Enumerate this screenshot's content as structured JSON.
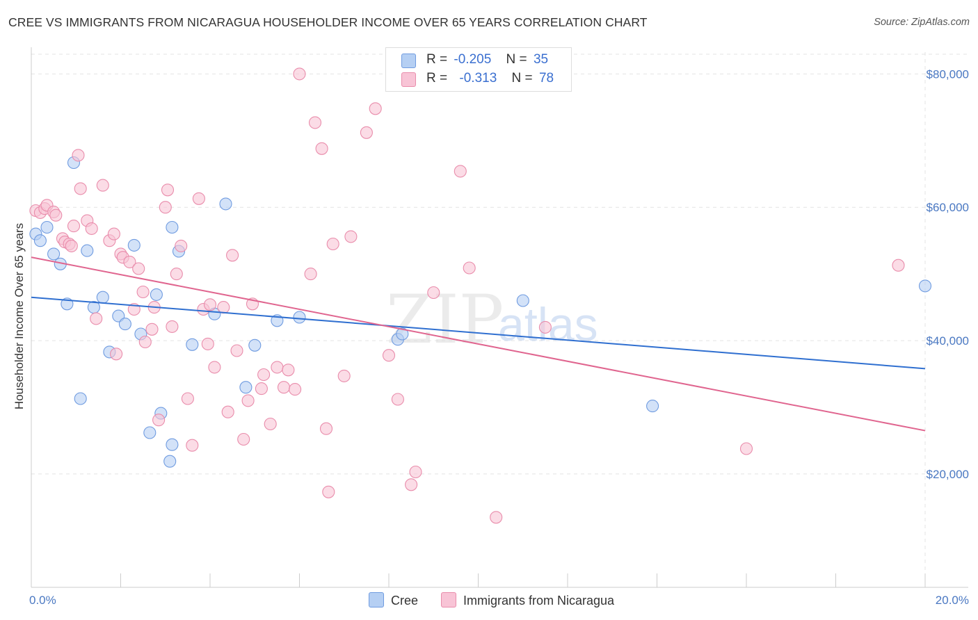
{
  "title": "CREE VS IMMIGRANTS FROM NICARAGUA HOUSEHOLDER INCOME OVER 65 YEARS CORRELATION CHART",
  "source": "Source: ZipAtlas.com",
  "watermark": {
    "zip": "ZIP",
    "atlas": "atlas"
  },
  "legend": {
    "r_label": "R =",
    "n_label": "N =",
    "rows": [
      {
        "r": "-0.205",
        "n": "35",
        "fill": "#b5cff3",
        "stroke": "#6f9be0"
      },
      {
        "r": "-0.313",
        "n": "78",
        "fill": "#f8c4d6",
        "stroke": "#e98cab"
      }
    ]
  },
  "chart_data": {
    "type": "scatter",
    "title": "CREE VS IMMIGRANTS FROM NICARAGUA HOUSEHOLDER INCOME OVER 65 YEARS CORRELATION CHART",
    "xlabel": "",
    "ylabel": "Householder Income Over 65 years",
    "xlim": [
      0,
      20
    ],
    "ylim": [
      3000,
      84000
    ],
    "x_tick_labels": [
      "0.0%",
      "20.0%"
    ],
    "y_ticks": [
      20000,
      40000,
      60000,
      80000
    ],
    "y_tick_labels": [
      "$20,000",
      "$40,000",
      "$60,000",
      "$80,000"
    ],
    "grid": true,
    "legend_position": "top-center",
    "series": [
      {
        "name": "Cree",
        "color": "#6f9be0",
        "fill": "#b5cff3",
        "line_color": "#2f6fd0",
        "trend": [
          [
            0,
            46500
          ],
          [
            20,
            35800
          ]
        ],
        "points": [
          [
            0.1,
            56000
          ],
          [
            0.2,
            55000
          ],
          [
            0.35,
            57000
          ],
          [
            0.5,
            53000
          ],
          [
            0.65,
            51500
          ],
          [
            0.8,
            45500
          ],
          [
            0.95,
            66700
          ],
          [
            1.1,
            31300
          ],
          [
            1.25,
            53500
          ],
          [
            1.4,
            45000
          ],
          [
            1.6,
            46500
          ],
          [
            1.75,
            38300
          ],
          [
            1.95,
            43700
          ],
          [
            2.1,
            42500
          ],
          [
            2.3,
            54300
          ],
          [
            2.45,
            41000
          ],
          [
            2.65,
            26200
          ],
          [
            2.8,
            46900
          ],
          [
            2.9,
            29100
          ],
          [
            3.1,
            21900
          ],
          [
            3.15,
            24400
          ],
          [
            3.15,
            57000
          ],
          [
            3.3,
            53400
          ],
          [
            3.6,
            39400
          ],
          [
            4.1,
            44000
          ],
          [
            4.35,
            60500
          ],
          [
            4.8,
            33000
          ],
          [
            5.0,
            39300
          ],
          [
            5.5,
            43000
          ],
          [
            6.0,
            43500
          ],
          [
            8.2,
            40200
          ],
          [
            8.3,
            41000
          ],
          [
            11.0,
            46000
          ],
          [
            13.9,
            30200
          ],
          [
            20.0,
            48200
          ]
        ]
      },
      {
        "name": "Immigrants from Nicaragua",
        "color": "#e98cab",
        "fill": "#f8c4d6",
        "line_color": "#e0658f",
        "trend": [
          [
            0,
            52500
          ],
          [
            20,
            26500
          ]
        ],
        "points": [
          [
            0.1,
            59500
          ],
          [
            0.2,
            59200
          ],
          [
            0.3,
            59800
          ],
          [
            0.35,
            60300
          ],
          [
            0.5,
            59300
          ],
          [
            0.55,
            58800
          ],
          [
            0.7,
            55300
          ],
          [
            0.75,
            54800
          ],
          [
            0.85,
            54500
          ],
          [
            0.9,
            54200
          ],
          [
            0.95,
            57200
          ],
          [
            1.05,
            67800
          ],
          [
            1.1,
            62800
          ],
          [
            1.25,
            58000
          ],
          [
            1.35,
            56800
          ],
          [
            1.45,
            43300
          ],
          [
            1.6,
            63300
          ],
          [
            1.75,
            55000
          ],
          [
            1.85,
            56000
          ],
          [
            1.9,
            38000
          ],
          [
            2.0,
            53000
          ],
          [
            2.05,
            52500
          ],
          [
            2.2,
            51800
          ],
          [
            2.3,
            44700
          ],
          [
            2.4,
            50800
          ],
          [
            2.5,
            47300
          ],
          [
            2.55,
            39800
          ],
          [
            2.7,
            41700
          ],
          [
            2.75,
            45000
          ],
          [
            2.85,
            28100
          ],
          [
            3.0,
            60000
          ],
          [
            3.05,
            62600
          ],
          [
            3.15,
            42100
          ],
          [
            3.25,
            50000
          ],
          [
            3.35,
            54200
          ],
          [
            3.5,
            31300
          ],
          [
            3.6,
            24300
          ],
          [
            3.75,
            61300
          ],
          [
            3.85,
            44700
          ],
          [
            3.95,
            39500
          ],
          [
            4.0,
            45400
          ],
          [
            4.1,
            36000
          ],
          [
            4.3,
            45000
          ],
          [
            4.4,
            29300
          ],
          [
            4.5,
            52800
          ],
          [
            4.6,
            38500
          ],
          [
            4.75,
            25200
          ],
          [
            4.85,
            31000
          ],
          [
            4.95,
            45500
          ],
          [
            5.15,
            32800
          ],
          [
            5.2,
            34900
          ],
          [
            5.35,
            27500
          ],
          [
            5.5,
            36000
          ],
          [
            5.65,
            33000
          ],
          [
            5.75,
            35600
          ],
          [
            5.9,
            32700
          ],
          [
            6.0,
            80000
          ],
          [
            6.25,
            50000
          ],
          [
            6.35,
            72700
          ],
          [
            6.5,
            68800
          ],
          [
            6.6,
            26800
          ],
          [
            6.65,
            17300
          ],
          [
            6.75,
            54500
          ],
          [
            7.0,
            34700
          ],
          [
            7.15,
            55600
          ],
          [
            7.5,
            71200
          ],
          [
            7.7,
            74800
          ],
          [
            8.0,
            37800
          ],
          [
            8.2,
            31200
          ],
          [
            8.5,
            18400
          ],
          [
            8.6,
            20300
          ],
          [
            9.0,
            47200
          ],
          [
            9.6,
            65400
          ],
          [
            9.8,
            50900
          ],
          [
            10.4,
            13500
          ],
          [
            11.5,
            42000
          ],
          [
            16.0,
            23800
          ],
          [
            19.4,
            51300
          ]
        ]
      }
    ]
  }
}
